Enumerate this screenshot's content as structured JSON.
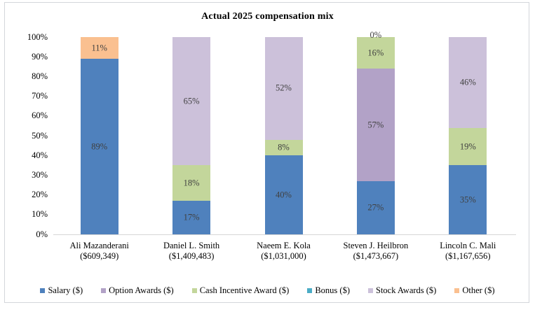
{
  "chart_data": {
    "type": "bar",
    "stacked": true,
    "title": "Actual 2025 compensation mix",
    "unit": "%",
    "categories": [
      "Ali Mazanderani",
      "Daniel L. Smith",
      "Naeem E. Kola",
      "Steven J. Heilbron",
      "Lincoln C. Mali"
    ],
    "category_totals": [
      "($609,349)",
      "($1,409,483)",
      "($1,031,000)",
      "($1,473,667)",
      "($1,167,656)"
    ],
    "series": [
      {
        "name": "Salary ($)",
        "color": "#4F81BD",
        "values": [
          89,
          17,
          40,
          27,
          35
        ]
      },
      {
        "name": "Option Awards ($)",
        "color": "#B2A2C7",
        "values": [
          0,
          0,
          0,
          57,
          0
        ]
      },
      {
        "name": "Cash Incentive Award ($)",
        "color": "#C3D69B",
        "values": [
          0,
          18,
          8,
          16,
          19
        ]
      },
      {
        "name": "Bonus ($)",
        "color": "#4BACC6",
        "values": [
          0,
          0,
          0,
          0,
          0
        ]
      },
      {
        "name": "Stock Awards ($)",
        "color": "#CCC1DA",
        "values": [
          0,
          65,
          52,
          0,
          46
        ]
      },
      {
        "name": "Other ($)",
        "color": "#FAC090",
        "values": [
          11,
          0,
          0,
          0,
          0
        ]
      }
    ],
    "data_label_suffix": "%",
    "zero_labels": [
      {
        "category_index": 3,
        "text": "0%"
      }
    ],
    "ylim": [
      0,
      100
    ],
    "y_tick_labels": [
      "0%",
      "10%",
      "20%",
      "30%",
      "40%",
      "50%",
      "60%",
      "70%",
      "80%",
      "90%",
      "100%"
    ],
    "legend_position": "bottom",
    "gridlines": false
  }
}
